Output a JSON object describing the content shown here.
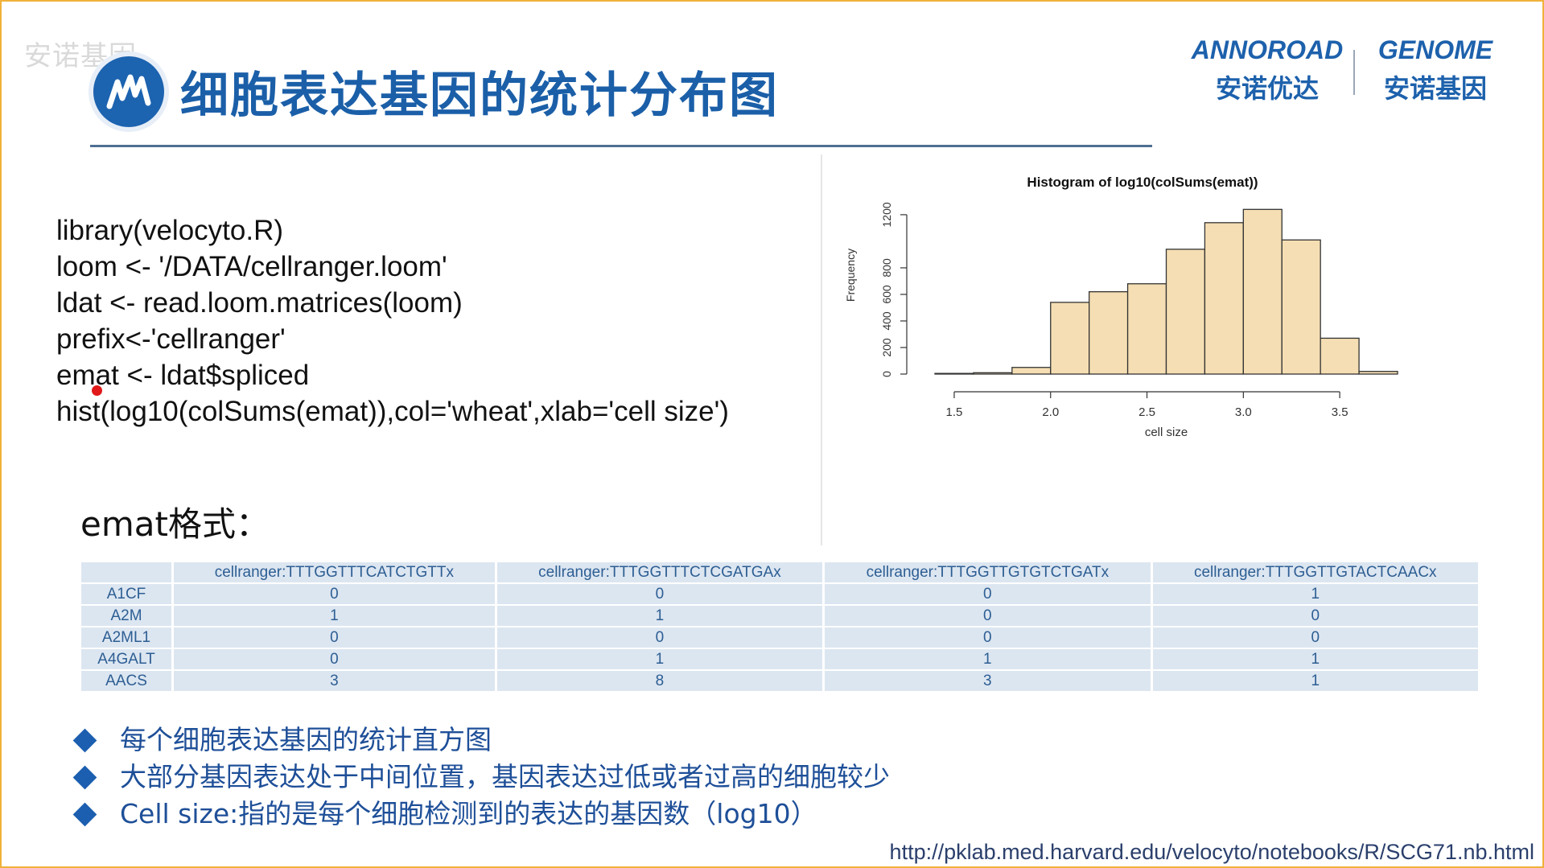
{
  "watermark": "安诺基因",
  "title": "细胞表达基因的统计分布图",
  "brand": {
    "left_en": "ANNOROAD",
    "left_cn": "安诺优达",
    "right_en": "GENOME",
    "right_cn": "安诺基因"
  },
  "code_lines": [
    "library(velocyto.R)",
    "loom <- '/DATA/cellranger.loom'",
    "ldat <- read.loom.matrices(loom)",
    "prefix<-'cellranger'",
    "emat <- ldat$spliced",
    "hist(log10(colSums(emat)),col='wheat',xlab='cell size')"
  ],
  "emat_label": "emat格式：",
  "table": {
    "headers": [
      "",
      "cellranger:TTTGGTTTCATCTGTTx",
      "cellranger:TTTGGTTTCTCGATGAx",
      "cellranger:TTTGGTTGTGTCTGATx",
      "cellranger:TTTGGTTGTACTCAACx"
    ],
    "rows": [
      [
        "A1CF",
        "0",
        "0",
        "0",
        "1"
      ],
      [
        "A2M",
        "1",
        "1",
        "0",
        "0"
      ],
      [
        "A2ML1",
        "0",
        "0",
        "0",
        "0"
      ],
      [
        "A4GALT",
        "0",
        "1",
        "1",
        "1"
      ],
      [
        "AACS",
        "3",
        "8",
        "3",
        "1"
      ]
    ]
  },
  "bullets": [
    "每个细胞表达基因的统计直方图",
    "大部分基因表达处于中间位置，基因表达过低或者过高的细胞较少",
    "Cell size:指的是每个细胞检测到的表达的基因数（log10）"
  ],
  "url": "http://pklab.med.harvard.edu/velocyto/notebooks/R/SCG71.nb.html",
  "colors": {
    "accent": "#1b5fa8",
    "bar_fill": "#f5deb3",
    "table_cell": "#dce6f1"
  },
  "chart_data": {
    "type": "bar",
    "title": "Histogram of log10(colSums(emat))",
    "xlabel": "cell size",
    "ylabel": "Frequency",
    "bins": [
      {
        "x0": 1.4,
        "x1": 1.6,
        "value": 5
      },
      {
        "x0": 1.6,
        "x1": 1.8,
        "value": 10
      },
      {
        "x0": 1.8,
        "x1": 2.0,
        "value": 50
      },
      {
        "x0": 2.0,
        "x1": 2.2,
        "value": 540
      },
      {
        "x0": 2.2,
        "x1": 2.4,
        "value": 620
      },
      {
        "x0": 2.4,
        "x1": 2.6,
        "value": 680
      },
      {
        "x0": 2.6,
        "x1": 2.8,
        "value": 940
      },
      {
        "x0": 2.8,
        "x1": 3.0,
        "value": 1140
      },
      {
        "x0": 3.0,
        "x1": 3.2,
        "value": 1240
      },
      {
        "x0": 3.2,
        "x1": 3.4,
        "value": 1010
      },
      {
        "x0": 3.4,
        "x1": 3.6,
        "value": 270
      },
      {
        "x0": 3.6,
        "x1": 3.8,
        "value": 20
      }
    ],
    "xticks": [
      1.5,
      2.0,
      2.5,
      3.0,
      3.5
    ],
    "xtick_labels": [
      "1.5",
      "2.0",
      "2.5",
      "3.0",
      "3.5"
    ],
    "yticks": [
      0,
      200,
      400,
      600,
      800,
      1200
    ],
    "ytick_labels": [
      "0",
      "200",
      "400",
      "600",
      "800",
      "1200"
    ],
    "xlim": [
      1.4,
      3.8
    ],
    "ylim": [
      0,
      1260
    ],
    "grid": false,
    "legend": "none"
  }
}
